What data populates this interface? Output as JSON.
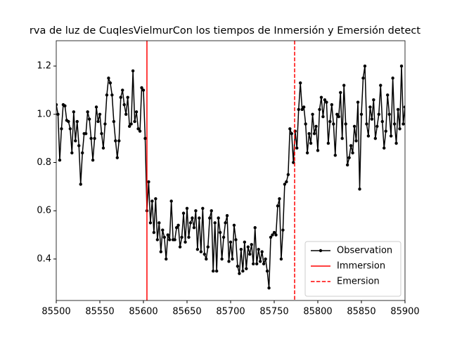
{
  "chart_data": {
    "type": "line",
    "title": "rva de luz de CuqlesVielmurCon los tiempos de Inmersión y Emersión detect",
    "x": [
      85500,
      85502,
      85504,
      85506,
      85508,
      85510,
      85512,
      85514,
      85516,
      85518,
      85520,
      85522,
      85524,
      85526,
      85528,
      85530,
      85532,
      85534,
      85536,
      85538,
      85540,
      85542,
      85544,
      85546,
      85548,
      85550,
      85552,
      85554,
      85556,
      85558,
      85560,
      85562,
      85564,
      85566,
      85568,
      85570,
      85572,
      85574,
      85576,
      85578,
      85580,
      85582,
      85584,
      85586,
      85588,
      85590,
      85592,
      85594,
      85596,
      85598,
      85600,
      85602,
      85604,
      85606,
      85608,
      85610,
      85612,
      85614,
      85616,
      85618,
      85620,
      85622,
      85624,
      85626,
      85628,
      85630,
      85632,
      85634,
      85636,
      85638,
      85640,
      85642,
      85644,
      85646,
      85648,
      85650,
      85652,
      85654,
      85656,
      85658,
      85660,
      85662,
      85664,
      85666,
      85668,
      85670,
      85672,
      85674,
      85676,
      85678,
      85680,
      85682,
      85684,
      85686,
      85688,
      85690,
      85692,
      85694,
      85696,
      85698,
      85700,
      85702,
      85704,
      85706,
      85708,
      85710,
      85712,
      85714,
      85716,
      85718,
      85720,
      85722,
      85724,
      85726,
      85728,
      85730,
      85732,
      85734,
      85736,
      85738,
      85740,
      85742,
      85744,
      85746,
      85748,
      85750,
      85752,
      85754,
      85756,
      85758,
      85760,
      85762,
      85764,
      85766,
      85768,
      85770,
      85772,
      85774,
      85776,
      85778,
      85780,
      85782,
      85784,
      85786,
      85788,
      85790,
      85792,
      85794,
      85796,
      85798,
      85800,
      85802,
      85804,
      85806,
      85808,
      85810,
      85812,
      85814,
      85816,
      85818,
      85820,
      85822,
      85824,
      85826,
      85828,
      85830,
      85832,
      85834,
      85836,
      85838,
      85840,
      85842,
      85844,
      85846,
      85848,
      85850,
      85852,
      85854,
      85856,
      85858,
      85860,
      85862,
      85864,
      85866,
      85868,
      85870,
      85872,
      85874,
      85876,
      85878,
      85880,
      85882,
      85884,
      85886,
      85888,
      85890,
      85892,
      85894,
      85896,
      85898,
      85900
    ],
    "series": [
      {
        "name": "Observation",
        "color": "#000000",
        "values": [
          1.04,
          1.0,
          0.81,
          0.94,
          1.04,
          1.035,
          0.975,
          0.97,
          0.94,
          0.84,
          1.01,
          0.89,
          0.97,
          0.87,
          0.71,
          0.84,
          0.92,
          0.92,
          1.01,
          0.98,
          0.9,
          0.81,
          0.9,
          1.03,
          0.97,
          1.0,
          0.92,
          0.86,
          0.96,
          1.08,
          1.15,
          1.13,
          1.08,
          0.97,
          0.89,
          0.82,
          0.89,
          1.07,
          1.1,
          1.04,
          1.0,
          1.07,
          0.95,
          0.96,
          1.18,
          0.97,
          1.01,
          0.94,
          0.93,
          1.11,
          1.1,
          0.9,
          0.6,
          0.72,
          0.55,
          0.64,
          0.51,
          0.65,
          0.48,
          0.55,
          0.43,
          0.52,
          0.49,
          0.4,
          0.5,
          0.48,
          0.64,
          0.48,
          0.48,
          0.53,
          0.54,
          0.45,
          0.49,
          0.59,
          0.47,
          0.61,
          0.49,
          0.55,
          0.57,
          0.53,
          0.6,
          0.44,
          0.57,
          0.43,
          0.61,
          0.42,
          0.4,
          0.45,
          0.57,
          0.6,
          0.35,
          0.55,
          0.35,
          0.57,
          0.51,
          0.4,
          0.49,
          0.55,
          0.58,
          0.39,
          0.47,
          0.4,
          0.54,
          0.48,
          0.37,
          0.34,
          0.44,
          0.35,
          0.47,
          0.36,
          0.45,
          0.42,
          0.46,
          0.38,
          0.53,
          0.38,
          0.44,
          0.39,
          0.43,
          0.38,
          0.4,
          0.35,
          0.28,
          0.49,
          0.5,
          0.51,
          0.5,
          0.62,
          0.65,
          0.4,
          0.52,
          0.71,
          0.72,
          0.75,
          0.94,
          0.92,
          0.8,
          0.93,
          0.86,
          1.02,
          1.13,
          1.02,
          1.03,
          0.96,
          0.84,
          0.92,
          0.88,
          1.0,
          0.92,
          0.95,
          0.85,
          1.02,
          1.07,
          0.99,
          1.06,
          1.05,
          0.88,
          0.97,
          1.04,
          0.96,
          0.83,
          1.0,
          0.99,
          1.09,
          0.9,
          1.12,
          0.96,
          0.79,
          0.82,
          0.87,
          0.84,
          0.95,
          0.89,
          1.05,
          0.69,
          1.0,
          1.15,
          1.2,
          0.96,
          0.91,
          1.03,
          0.98,
          1.06,
          0.9,
          0.95,
          1.0,
          1.12,
          0.97,
          0.86,
          0.93,
          1.08,
          1.0,
          0.91,
          1.15,
          0.96,
          0.88,
          1.02,
          0.94,
          1.2,
          0.96,
          1.03
        ]
      }
    ],
    "vlines": [
      {
        "name": "Immersion",
        "x": 85604,
        "color": "#ff0000",
        "style": "solid"
      },
      {
        "name": "Emersion",
        "x": 85773.4,
        "color": "#ff0000",
        "style": "dashed"
      }
    ],
    "xlim": [
      85500,
      85900
    ],
    "xticks": [
      85500,
      85550,
      85600,
      85650,
      85700,
      85750,
      85800,
      85850,
      85900
    ],
    "ylim": [
      0.228,
      1.305
    ],
    "yticks": [
      0.4,
      0.6,
      0.8,
      {
        "value": 1,
        "label": "1.0"
      },
      1.2
    ],
    "legend": "lower right",
    "grid": false
  }
}
